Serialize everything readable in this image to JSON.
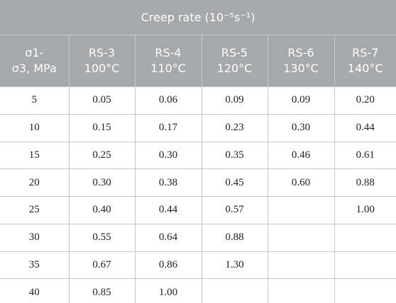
{
  "table": {
    "title": "Creep rate (10⁻⁵s⁻¹)",
    "header": [
      [
        "σ1-",
        "σ3, MPa"
      ],
      [
        "RS-3",
        "100°C"
      ],
      [
        "RS-4",
        "110°C"
      ],
      [
        "RS-5",
        "120°C"
      ],
      [
        "RS-6",
        "130°C"
      ],
      [
        "RS-7",
        "140°C"
      ]
    ],
    "rows": [
      [
        "5",
        "0.05",
        "0.06",
        "0.09",
        "0.09",
        "0.20"
      ],
      [
        "10",
        "0.15",
        "0.17",
        "0.23",
        "0.30",
        "0.44"
      ],
      [
        "15",
        "0.25",
        "0.30",
        "0.35",
        "0.46",
        "0.61"
      ],
      [
        "20",
        "0.30",
        "0.38",
        "0.45",
        "0.60",
        "0.88"
      ],
      [
        "25",
        "0.40",
        "0.44",
        "0.57",
        null,
        "1.00"
      ],
      [
        "30",
        "0.55",
        "0.64",
        "0.88",
        null,
        null
      ],
      [
        "35",
        "0.67",
        "0.86",
        "1.30",
        null,
        null
      ],
      [
        "40",
        "0.85",
        "1.00",
        null,
        null,
        null
      ]
    ]
  }
}
